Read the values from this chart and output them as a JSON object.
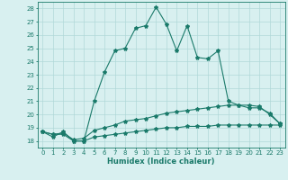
{
  "xlabel": "Humidex (Indice chaleur)",
  "x_values": [
    0,
    1,
    2,
    3,
    4,
    5,
    6,
    7,
    8,
    9,
    10,
    11,
    12,
    13,
    14,
    15,
    16,
    17,
    18,
    19,
    20,
    21,
    22,
    23
  ],
  "line1_y": [
    18.7,
    18.3,
    18.7,
    18.0,
    18.0,
    21.0,
    23.2,
    24.8,
    25.0,
    26.5,
    26.7,
    28.1,
    26.8,
    24.8,
    26.7,
    24.3,
    24.2,
    24.8,
    21.0,
    20.7,
    20.5,
    20.5,
    20.1,
    19.3
  ],
  "line2_y": [
    18.7,
    18.5,
    18.6,
    18.1,
    18.2,
    18.8,
    19.0,
    19.2,
    19.5,
    19.6,
    19.7,
    19.9,
    20.1,
    20.2,
    20.3,
    20.4,
    20.5,
    20.6,
    20.7,
    20.7,
    20.7,
    20.6,
    20.0,
    19.3
  ],
  "line3_y": [
    18.7,
    18.5,
    18.5,
    18.0,
    18.0,
    18.3,
    18.4,
    18.5,
    18.6,
    18.7,
    18.8,
    18.9,
    19.0,
    19.0,
    19.1,
    19.1,
    19.1,
    19.2,
    19.2,
    19.2,
    19.2,
    19.2,
    19.2,
    19.2
  ],
  "line_color": "#1a7a6a",
  "bg_color": "#d8f0f0",
  "grid_color": "#b0d8d8",
  "ylim": [
    17.5,
    28.5
  ],
  "xlim": [
    -0.5,
    23.5
  ],
  "yticks": [
    18,
    19,
    20,
    21,
    22,
    23,
    24,
    25,
    26,
    27,
    28
  ],
  "xticks": [
    0,
    1,
    2,
    3,
    4,
    5,
    6,
    7,
    8,
    9,
    10,
    11,
    12,
    13,
    14,
    15,
    16,
    17,
    18,
    19,
    20,
    21,
    22,
    23
  ],
  "tick_fontsize": 5.0,
  "xlabel_fontsize": 6.0,
  "marker_size": 3.0,
  "line_width": 0.8
}
